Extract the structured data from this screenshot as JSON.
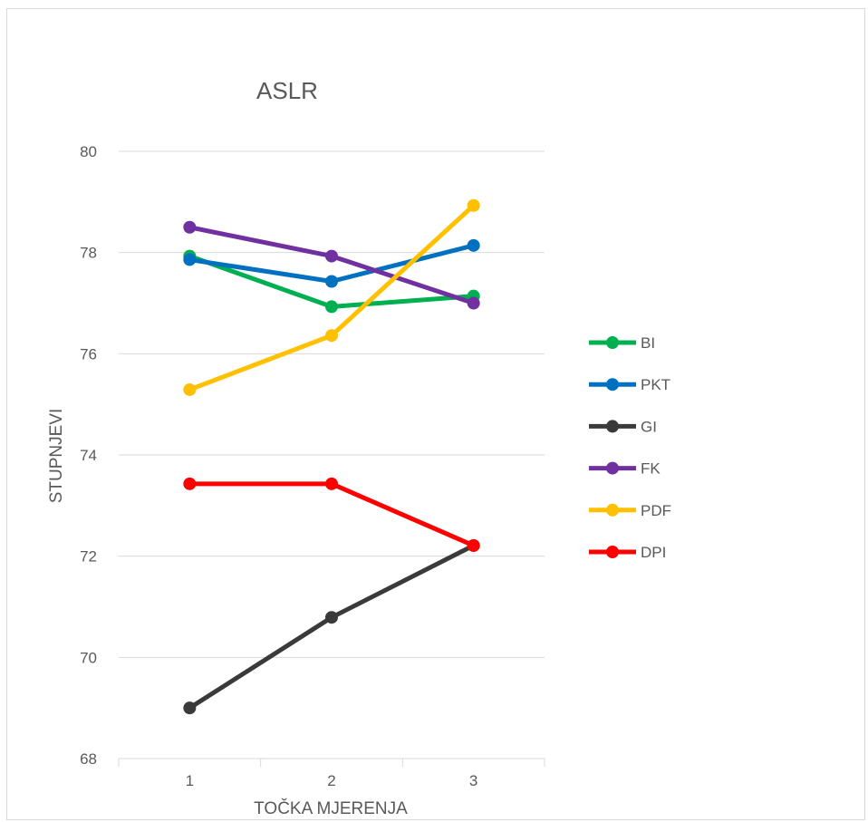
{
  "chart_data": {
    "type": "line",
    "title": "ASLR",
    "xlabel": "TOČKA MJERENJA",
    "ylabel": "STUPNJEVI",
    "categories": [
      "1",
      "2",
      "3"
    ],
    "ylim": [
      68,
      80
    ],
    "yticks": [
      "68",
      "70",
      "72",
      "74",
      "76",
      "78",
      "80"
    ],
    "grid": true,
    "legend_position": "right",
    "series": [
      {
        "name": "BI",
        "color": "#00b050",
        "values": [
          77.93,
          76.93,
          77.14
        ]
      },
      {
        "name": "PKT",
        "color": "#0070c0",
        "values": [
          77.86,
          77.43,
          78.14
        ]
      },
      {
        "name": "GI",
        "color": "#3a3a3a",
        "values": [
          69.0,
          70.79,
          72.21
        ]
      },
      {
        "name": "FK",
        "color": "#7030a0",
        "values": [
          78.5,
          77.93,
          77.0
        ]
      },
      {
        "name": "PDF",
        "color": "#ffc000",
        "values": [
          75.29,
          76.36,
          78.93
        ]
      },
      {
        "name": "DPI",
        "color": "#ff0000",
        "values": [
          73.43,
          73.43,
          72.21
        ]
      }
    ]
  }
}
